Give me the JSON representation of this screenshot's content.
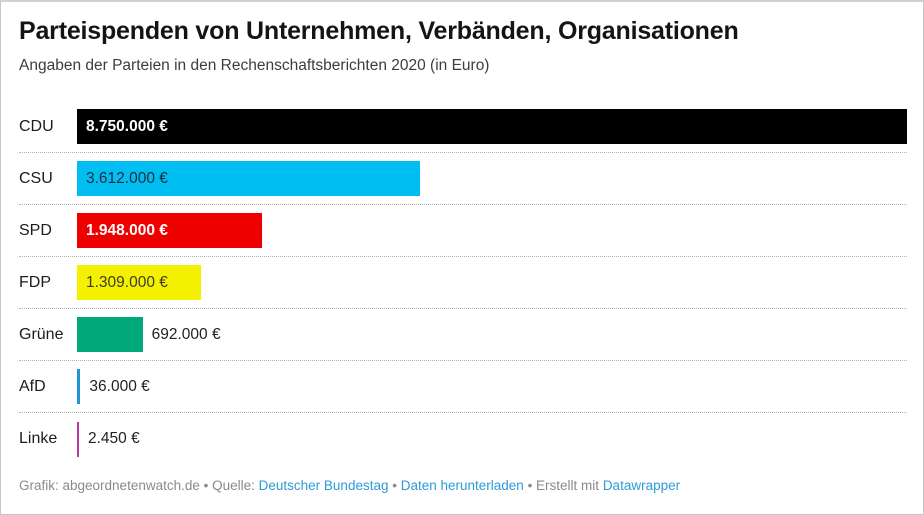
{
  "header": {
    "title": "Parteispenden von Unternehmen, Verbänden, Organisationen",
    "subtitle": "Angaben der Parteien in den Rechenschaftsberichten 2020 (in Euro)"
  },
  "chart_data": {
    "type": "bar",
    "orientation": "horizontal",
    "title": "Parteispenden von Unternehmen, Verbänden, Organisationen",
    "subtitle": "Angaben der Parteien in den Rechenschaftsberichten 2020 (in Euro)",
    "categories": [
      "CDU",
      "CSU",
      "SPD",
      "FDP",
      "Grüne",
      "AfD",
      "Linke"
    ],
    "values": [
      8750000,
      3612000,
      1948000,
      1309000,
      692000,
      36000,
      2450
    ],
    "value_labels": [
      "8.750.000 €",
      "3.612.000 €",
      "1.948.000 €",
      "1.309.000 €",
      "692.000 €",
      "36.000 €",
      "2.450 €"
    ],
    "bar_colors": [
      "#000000",
      "#00BDF2",
      "#EE0000",
      "#F3F000",
      "#00A87A",
      "#2196D6",
      "#B53BA3"
    ],
    "label_inside": [
      true,
      true,
      true,
      true,
      false,
      false,
      false
    ],
    "label_text_colors": [
      "#ffffff",
      "#16303c",
      "#ffffff",
      "#3d3d26",
      "#222222",
      "#222222",
      "#222222"
    ],
    "xlim": [
      0,
      8750000
    ],
    "grid": false,
    "legend": "none",
    "separator_style": "dotted"
  },
  "footer": {
    "link_color": "#2e9bd6",
    "segments": [
      {
        "text": "Grafik: abgeordnetenwatch.de",
        "type": "txt",
        "name": "credit-text"
      },
      {
        "text": " • ",
        "type": "sep",
        "name": "footer-separator"
      },
      {
        "text": "Quelle: ",
        "type": "txt",
        "name": "source-label"
      },
      {
        "text": "Deutscher Bundestag",
        "type": "link",
        "name": "source-link"
      },
      {
        "text": " • ",
        "type": "sep",
        "name": "footer-separator"
      },
      {
        "text": "Daten herunterladen",
        "type": "link",
        "name": "download-data-link"
      },
      {
        "text": " • ",
        "type": "sep",
        "name": "footer-separator"
      },
      {
        "text": "Erstellt mit ",
        "type": "txt",
        "name": "created-with-text"
      },
      {
        "text": "Datawrapper",
        "type": "link",
        "name": "datawrapper-link"
      }
    ]
  }
}
